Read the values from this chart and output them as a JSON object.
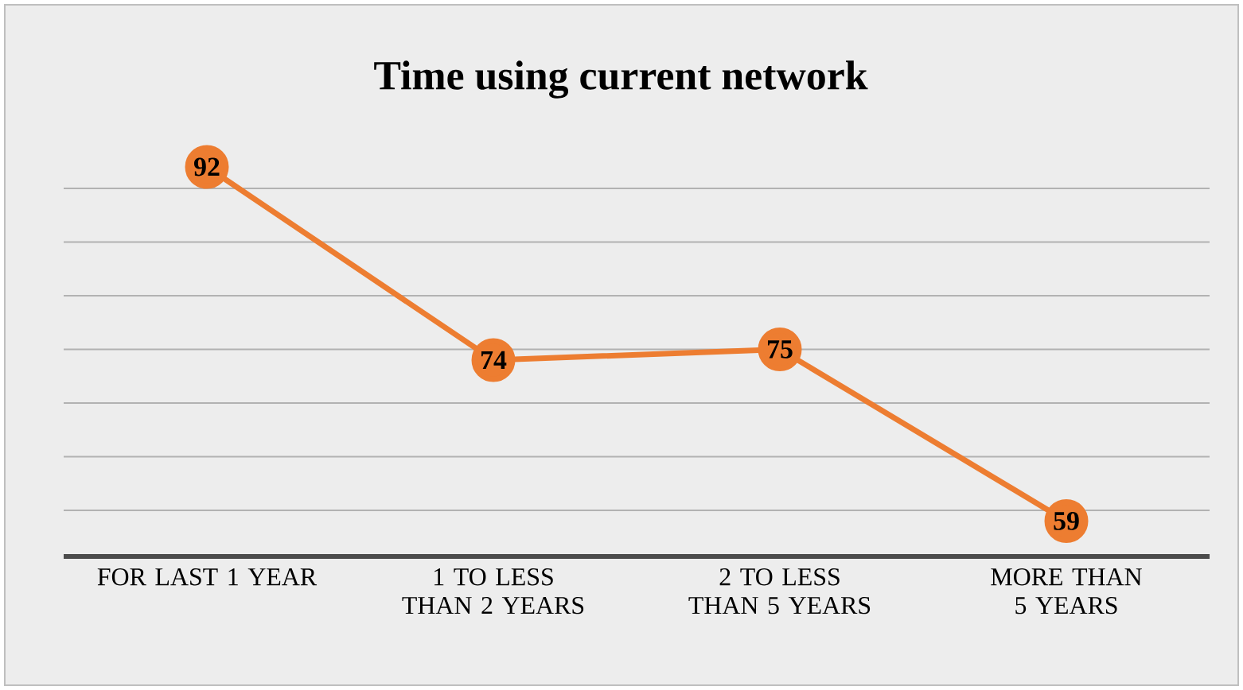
{
  "chart_data": {
    "type": "line",
    "title": "Time using current network",
    "categories": [
      "FOR LAST 1 YEAR",
      "1 TO LESS THAN 2 YEARS",
      "2 TO LESS THAN 5 YEARS",
      "MORE THAN 5 YEARS"
    ],
    "values": [
      92,
      74,
      75,
      59
    ],
    "color": "#ed7d31",
    "tick_labels": "x",
    "grid": "y",
    "data_labels": true,
    "marker": "circle",
    "line_style": "solid",
    "legend": false
  }
}
